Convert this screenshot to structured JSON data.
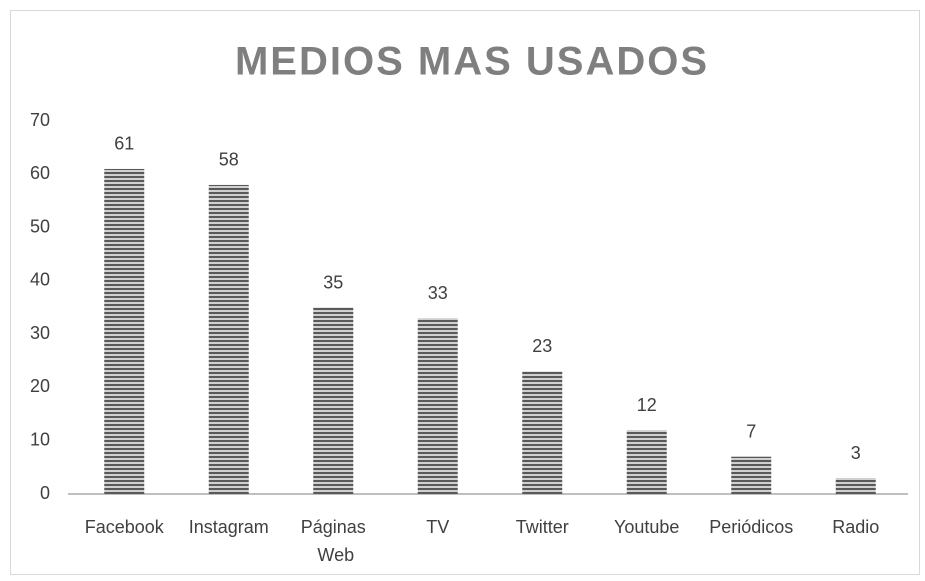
{
  "chart_data": {
    "type": "bar",
    "title": "MEDIOS MAS USADOS",
    "categories": [
      "Facebook",
      "Instagram",
      "Páginas Web",
      "TV",
      "Twitter",
      "Youtube",
      "Periódicos",
      "Radio"
    ],
    "values": [
      61,
      58,
      35,
      33,
      23,
      12,
      7,
      3
    ],
    "color": "#595959",
    "ylim": [
      0,
      70
    ],
    "yticks": [
      0,
      10,
      20,
      30,
      40,
      50,
      60,
      70
    ],
    "grid": false
  }
}
